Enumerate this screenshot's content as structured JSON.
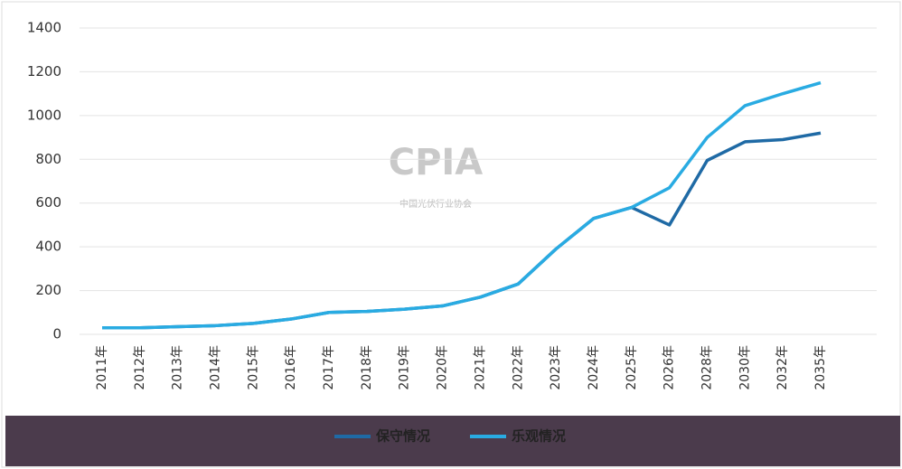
{
  "chart_data": {
    "type": "line",
    "categories": [
      "2011年",
      "2012年",
      "2013年",
      "2014年",
      "2015年",
      "2016年",
      "2017年",
      "2018年",
      "2019年",
      "2020年",
      "2021年",
      "2022年",
      "2023年",
      "2024年",
      "2025年",
      "2026年",
      "2028年",
      "2030年",
      "2032年",
      "2035年"
    ],
    "series": [
      {
        "name": "保守情况",
        "color": "#1f6aa5",
        "values": [
          30,
          30,
          35,
          40,
          50,
          70,
          100,
          105,
          115,
          130,
          170,
          230,
          390,
          530,
          580,
          500,
          795,
          880,
          890,
          920
        ]
      },
      {
        "name": "乐观情况",
        "color": "#29abe2",
        "values": [
          30,
          30,
          35,
          40,
          50,
          70,
          100,
          105,
          115,
          130,
          170,
          230,
          390,
          530,
          580,
          670,
          900,
          1045,
          1100,
          1150
        ]
      }
    ],
    "ylim": [
      0,
      1400
    ],
    "yticks": [
      0,
      200,
      400,
      600,
      800,
      1000,
      1200,
      1400
    ],
    "grid": true,
    "legend": "bottom"
  },
  "watermark": {
    "logo": "CPIA",
    "name": "中国光伏行业协会"
  }
}
